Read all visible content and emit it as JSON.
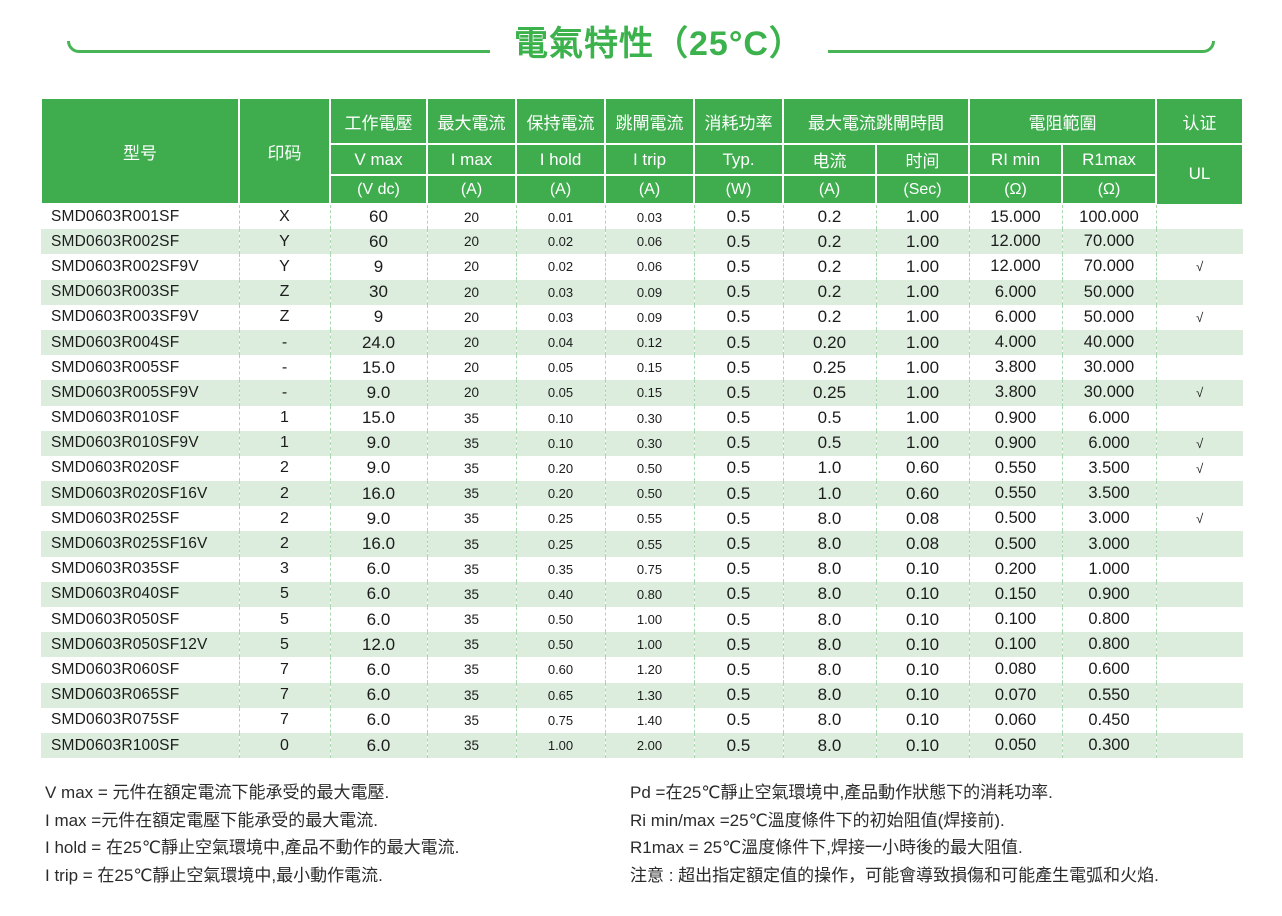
{
  "title": "電氣特性（25°C）",
  "colors": {
    "header_green": "#3fad4e",
    "title_green": "#3cb24c",
    "row_stripe_green": "#dcedde",
    "column_divider_dash": "#a8d7b0"
  },
  "table": {
    "header": {
      "model": "型号",
      "marking": "印码",
      "col_vmax": {
        "label": "工作電壓",
        "sub": "V max",
        "unit": "(V dc)"
      },
      "col_imax": {
        "label": "最大電流",
        "sub": "I max",
        "unit": "(A)"
      },
      "col_ihold": {
        "label": "保持電流",
        "sub": "I hold",
        "unit": "(A)"
      },
      "col_itrip": {
        "label": "跳閘電流",
        "sub": "I trip",
        "unit": "(A)"
      },
      "col_power": {
        "label": "消耗功率",
        "sub": "Typ.",
        "unit": "(W)"
      },
      "col_triptime": {
        "label": "最大電流跳閘時間",
        "current_sub": "电流",
        "current_unit": "(A)",
        "time_sub": "时间",
        "time_unit": "(Sec)"
      },
      "col_resist": {
        "label": "電阻範圍",
        "min_sub": "RI min",
        "min_unit": "(Ω)",
        "max_sub": "R1max",
        "max_unit": "(Ω)"
      },
      "col_cert": {
        "label": "认证",
        "sub": "UL"
      }
    },
    "check_symbol": "√",
    "rows": [
      [
        "SMD0603R001SF",
        "X",
        "60",
        "20",
        "0.01",
        "0.03",
        "0.5",
        "0.2",
        "1.00",
        "15.000",
        "100.000",
        ""
      ],
      [
        "SMD0603R002SF",
        "Y",
        "60",
        "20",
        "0.02",
        "0.06",
        "0.5",
        "0.2",
        "1.00",
        "12.000",
        "70.000",
        ""
      ],
      [
        "SMD0603R002SF9V",
        "Y",
        "9",
        "20",
        "0.02",
        "0.06",
        "0.5",
        "0.2",
        "1.00",
        "12.000",
        "70.000",
        "√"
      ],
      [
        "SMD0603R003SF",
        "Z",
        "30",
        "20",
        "0.03",
        "0.09",
        "0.5",
        "0.2",
        "1.00",
        "6.000",
        "50.000",
        ""
      ],
      [
        "SMD0603R003SF9V",
        "Z",
        "9",
        "20",
        "0.03",
        "0.09",
        "0.5",
        "0.2",
        "1.00",
        "6.000",
        "50.000",
        "√"
      ],
      [
        "SMD0603R004SF",
        "-",
        "24.0",
        "20",
        "0.04",
        "0.12",
        "0.5",
        "0.20",
        "1.00",
        "4.000",
        "40.000",
        ""
      ],
      [
        "SMD0603R005SF",
        "-",
        "15.0",
        "20",
        "0.05",
        "0.15",
        "0.5",
        "0.25",
        "1.00",
        "3.800",
        "30.000",
        ""
      ],
      [
        "SMD0603R005SF9V",
        "-",
        "9.0",
        "20",
        "0.05",
        "0.15",
        "0.5",
        "0.25",
        "1.00",
        "3.800",
        "30.000",
        "√"
      ],
      [
        "SMD0603R010SF",
        "1",
        "15.0",
        "35",
        "0.10",
        "0.30",
        "0.5",
        "0.5",
        "1.00",
        "0.900",
        "6.000",
        ""
      ],
      [
        "SMD0603R010SF9V",
        "1",
        "9.0",
        "35",
        "0.10",
        "0.30",
        "0.5",
        "0.5",
        "1.00",
        "0.900",
        "6.000",
        "√"
      ],
      [
        "SMD0603R020SF",
        "2",
        "9.0",
        "35",
        "0.20",
        "0.50",
        "0.5",
        "1.0",
        "0.60",
        "0.550",
        "3.500",
        "√"
      ],
      [
        "SMD0603R020SF16V",
        "2",
        "16.0",
        "35",
        "0.20",
        "0.50",
        "0.5",
        "1.0",
        "0.60",
        "0.550",
        "3.500",
        ""
      ],
      [
        "SMD0603R025SF",
        "2",
        "9.0",
        "35",
        "0.25",
        "0.55",
        "0.5",
        "8.0",
        "0.08",
        "0.500",
        "3.000",
        "√"
      ],
      [
        "SMD0603R025SF16V",
        "2",
        "16.0",
        "35",
        "0.25",
        "0.55",
        "0.5",
        "8.0",
        "0.08",
        "0.500",
        "3.000",
        ""
      ],
      [
        "SMD0603R035SF",
        "3",
        "6.0",
        "35",
        "0.35",
        "0.75",
        "0.5",
        "8.0",
        "0.10",
        "0.200",
        "1.000",
        ""
      ],
      [
        "SMD0603R040SF",
        "5",
        "6.0",
        "35",
        "0.40",
        "0.80",
        "0.5",
        "8.0",
        "0.10",
        "0.150",
        "0.900",
        ""
      ],
      [
        "SMD0603R050SF",
        "5",
        "6.0",
        "35",
        "0.50",
        "1.00",
        "0.5",
        "8.0",
        "0.10",
        "0.100",
        "0.800",
        ""
      ],
      [
        "SMD0603R050SF12V",
        "5",
        "12.0",
        "35",
        "0.50",
        "1.00",
        "0.5",
        "8.0",
        "0.10",
        "0.100",
        "0.800",
        ""
      ],
      [
        "SMD0603R060SF",
        "7",
        "6.0",
        "35",
        "0.60",
        "1.20",
        "0.5",
        "8.0",
        "0.10",
        "0.080",
        "0.600",
        ""
      ],
      [
        "SMD0603R065SF",
        "7",
        "6.0",
        "35",
        "0.65",
        "1.30",
        "0.5",
        "8.0",
        "0.10",
        "0.070",
        "0.550",
        ""
      ],
      [
        "SMD0603R075SF",
        "7",
        "6.0",
        "35",
        "0.75",
        "1.40",
        "0.5",
        "8.0",
        "0.10",
        "0.060",
        "0.450",
        ""
      ],
      [
        "SMD0603R100SF",
        "0",
        "6.0",
        "35",
        "1.00",
        "2.00",
        "0.5",
        "8.0",
        "0.10",
        "0.050",
        "0.300",
        ""
      ]
    ]
  },
  "notes": {
    "left": [
      "V max = 元件在額定電流下能承受的最大電壓.",
      "I max =元件在額定電壓下能承受的最大電流.",
      "I hold = 在25℃靜止空氣環境中,產品不動作的最大電流.",
      "I trip = 在25℃靜止空氣環境中,最小動作電流."
    ],
    "right": [
      "Pd =在25℃靜止空氣環境中,產品動作狀態下的消耗功率.",
      "Ri min/max  =25℃溫度條件下的初始阻值(焊接前).",
      "R1max  = 25℃溫度條件下,焊接一小時後的最大阻值.",
      "注意 : 超出指定額定值的操作，可能會導致損傷和可能產生電弧和火焰."
    ]
  }
}
